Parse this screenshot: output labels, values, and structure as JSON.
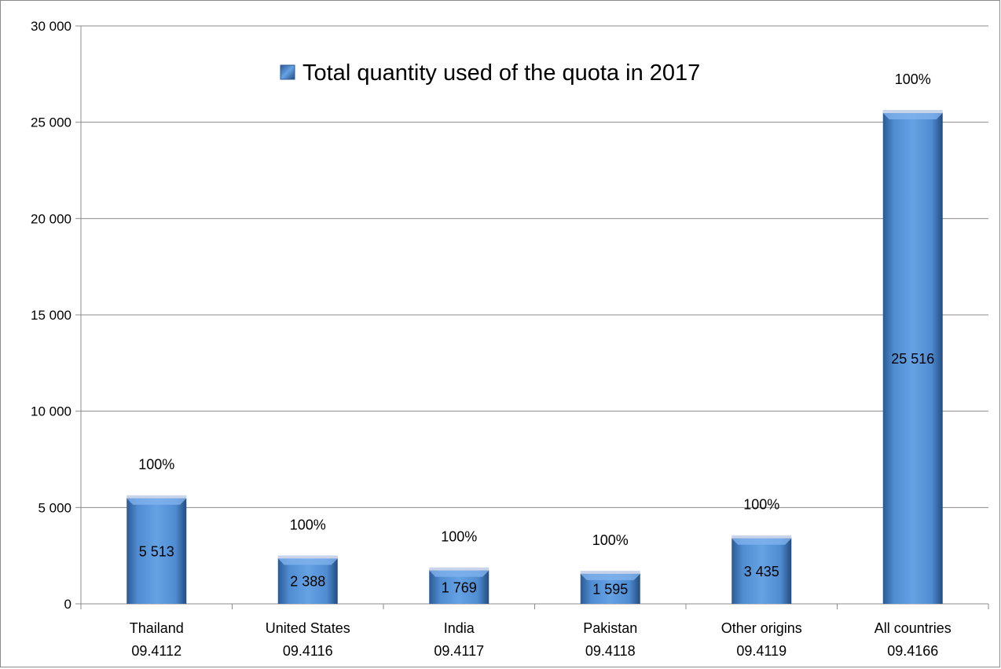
{
  "chart_data": {
    "type": "bar",
    "categories": [
      "Thailand",
      "United States",
      "India",
      "Pakistan",
      "Other origins",
      "All countries"
    ],
    "category_codes": [
      "09.4112",
      "09.4116",
      "09.4117",
      "09.4118",
      "09.4119",
      "09.4166"
    ],
    "series": [
      {
        "name": "Total quantity used of the quota in 2017",
        "values": [
          5513,
          2388,
          1769,
          1595,
          3435,
          25516
        ],
        "value_labels": [
          "5 513",
          "2 388",
          "1 769",
          "1 595",
          "3 435",
          "25 516"
        ],
        "percent_labels": [
          "100%",
          "100%",
          "100%",
          "100%",
          "100%",
          "100%"
        ]
      }
    ],
    "ylim": [
      0,
      30000
    ],
    "yticks": [
      0,
      5000,
      10000,
      15000,
      20000,
      25000,
      30000
    ],
    "ytick_labels": [
      "0",
      "5 000",
      "10 000",
      "15 000",
      "20 000",
      "25 000",
      "30 000"
    ],
    "xlabel": "",
    "ylabel": "",
    "grid": true,
    "legend_position": "top-center",
    "colors": {
      "bar": "#5b9bd5",
      "bar_dark": "#2e5f96",
      "bar_top": "#c9d3ea",
      "grid": "#8c8c8c"
    }
  }
}
